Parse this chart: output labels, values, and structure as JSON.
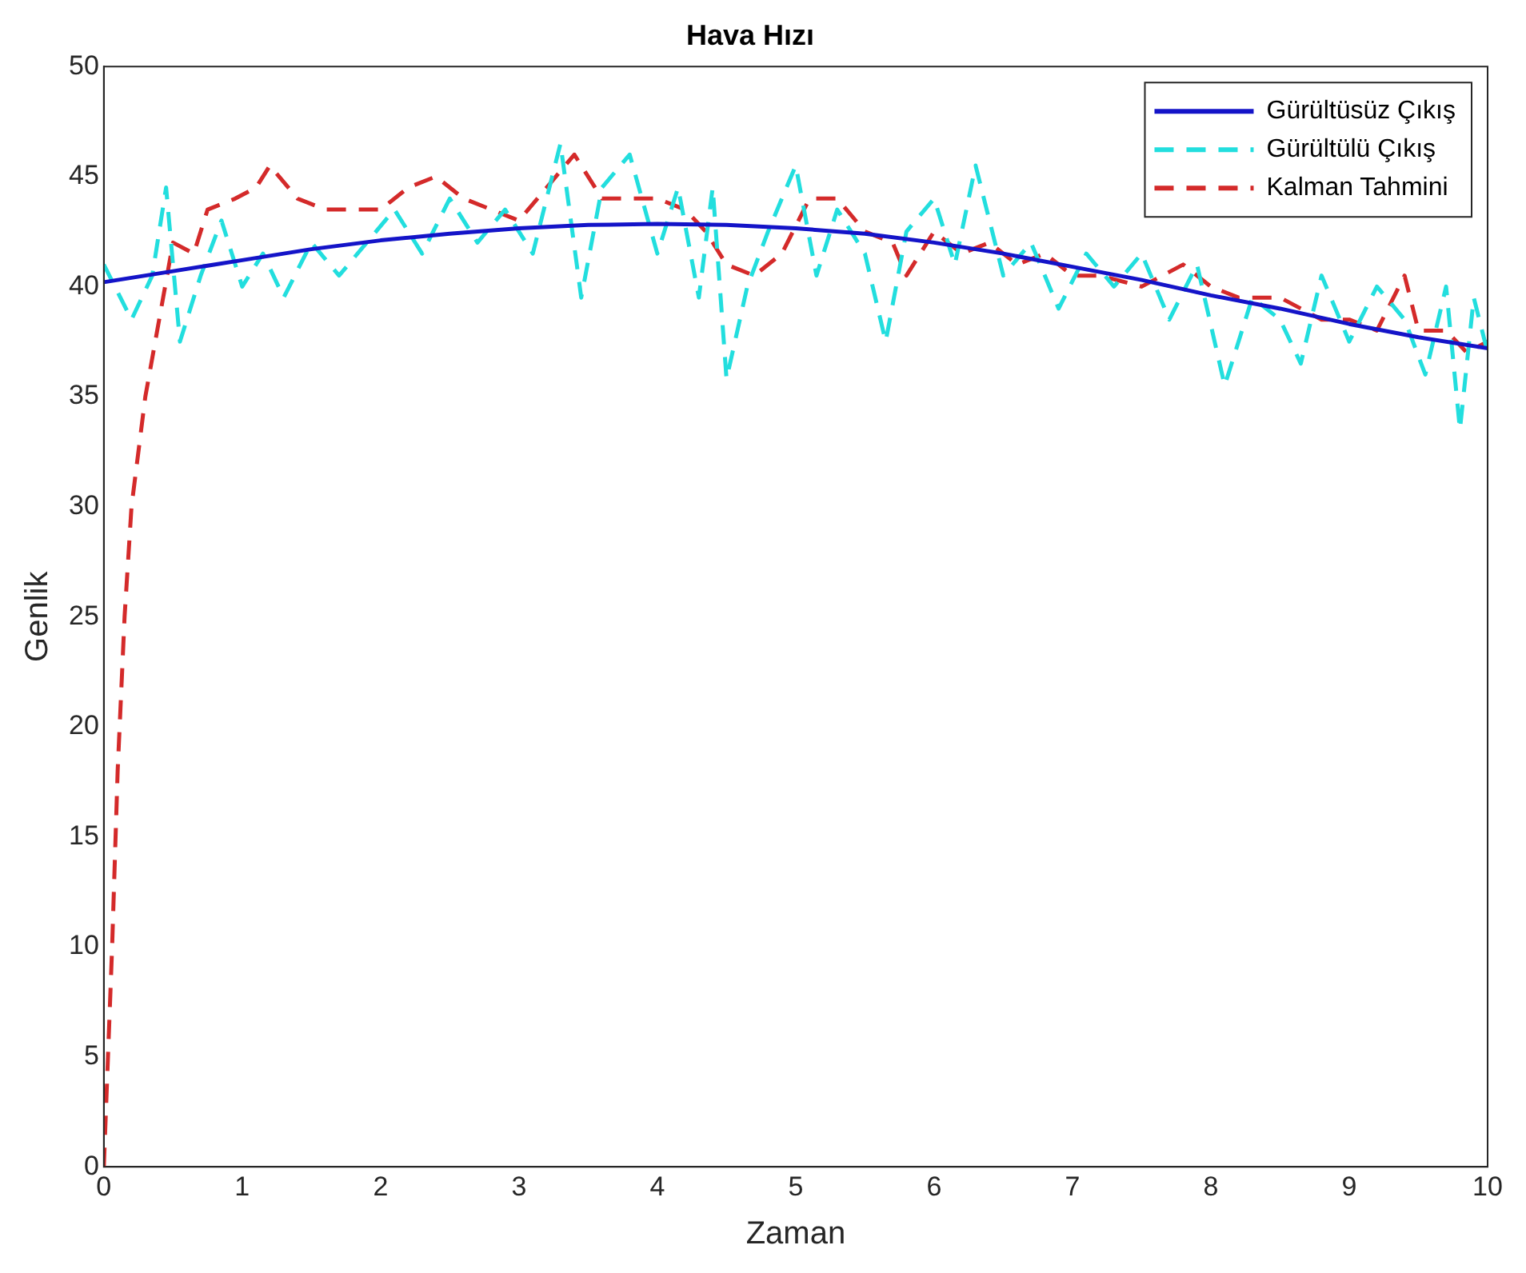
{
  "chart_data": {
    "type": "line",
    "title": "Hava Hızı",
    "xlabel": "Zaman",
    "ylabel": "Genlik",
    "xlim": [
      0,
      10
    ],
    "ylim": [
      0,
      50
    ],
    "xticks": [
      0,
      1,
      2,
      3,
      4,
      5,
      6,
      7,
      8,
      9,
      10
    ],
    "yticks": [
      0,
      5,
      10,
      15,
      20,
      25,
      30,
      35,
      40,
      45,
      50
    ],
    "grid": false,
    "legend": "top right",
    "marker": "none",
    "series": [
      {
        "name": "Gürültüsüz Çıkış",
        "color": "#1414c8",
        "line_style": "solid",
        "x": [
          0,
          0.5,
          1,
          1.5,
          2,
          2.5,
          3,
          3.5,
          4,
          4.5,
          5,
          5.5,
          6,
          6.5,
          7,
          7.5,
          8,
          8.5,
          9,
          9.5,
          10
        ],
        "values": [
          40.2,
          40.7,
          41.2,
          41.7,
          42.1,
          42.4,
          42.65,
          42.8,
          42.85,
          42.8,
          42.65,
          42.4,
          42,
          41.5,
          40.9,
          40.3,
          39.6,
          39,
          38.3,
          37.7,
          37.2
        ]
      },
      {
        "name": "Gürültülü Çıkış",
        "color": "#22dede",
        "line_style": "dashed",
        "x": [
          0,
          0.2,
          0.35,
          0.45,
          0.55,
          0.7,
          0.85,
          1,
          1.15,
          1.3,
          1.5,
          1.7,
          1.9,
          2.1,
          2.3,
          2.5,
          2.7,
          2.9,
          3.1,
          3.3,
          3.45,
          3.6,
          3.8,
          4,
          4.15,
          4.3,
          4.4,
          4.5,
          4.65,
          4.8,
          5,
          5.15,
          5.3,
          5.5,
          5.65,
          5.8,
          6,
          6.15,
          6.3,
          6.5,
          6.7,
          6.9,
          7.1,
          7.3,
          7.5,
          7.7,
          7.9,
          8.1,
          8.3,
          8.5,
          8.65,
          8.8,
          9,
          9.2,
          9.4,
          9.55,
          9.7,
          9.8,
          9.9,
          10
        ],
        "values": [
          41,
          38.5,
          40.5,
          44.5,
          37.5,
          40.5,
          43,
          40,
          41.5,
          39.5,
          42,
          40.5,
          42,
          43.5,
          41.5,
          44,
          42,
          43.5,
          41.5,
          46.5,
          39.5,
          44.5,
          46,
          41.5,
          44.5,
          39.5,
          44.5,
          35.8,
          40,
          42.5,
          45.5,
          40.5,
          43.5,
          41.5,
          37.5,
          42.5,
          44,
          41,
          45.5,
          40.5,
          42,
          39,
          41.5,
          40,
          41.5,
          38.5,
          41,
          35.5,
          39.5,
          38.5,
          36.5,
          40.5,
          37.5,
          40,
          38.5,
          36,
          40,
          33.5,
          39.5,
          37
        ]
      },
      {
        "name": "Kalman Tahmini",
        "color": "#d42a2a",
        "line_style": "dashed",
        "x": [
          0,
          0.03,
          0.06,
          0.1,
          0.15,
          0.2,
          0.3,
          0.4,
          0.5,
          0.65,
          0.75,
          0.95,
          1.1,
          1.2,
          1.4,
          1.6,
          1.8,
          2,
          2.2,
          2.4,
          2.6,
          2.8,
          3,
          3.2,
          3.4,
          3.6,
          3.8,
          4,
          4.2,
          4.35,
          4.5,
          4.7,
          4.9,
          5.1,
          5.3,
          5.5,
          5.7,
          5.8,
          6,
          6.2,
          6.4,
          6.6,
          6.8,
          7,
          7.2,
          7.5,
          7.8,
          8,
          8.2,
          8.5,
          8.8,
          9,
          9.2,
          9.4,
          9.5,
          9.7,
          9.85,
          10
        ],
        "values": [
          0,
          5,
          10,
          18,
          25,
          30,
          35,
          38.5,
          42,
          41.5,
          43.5,
          44,
          44.5,
          45.5,
          44,
          43.5,
          43.5,
          43.5,
          44.5,
          45,
          44,
          43.5,
          43,
          44.5,
          46,
          44,
          44,
          44,
          43.5,
          42.5,
          41,
          40.5,
          41.5,
          44,
          44,
          42.5,
          42,
          40.5,
          42.5,
          41.5,
          42,
          41,
          41.5,
          40.5,
          40.5,
          40,
          41,
          40,
          39.5,
          39.5,
          38.5,
          38.5,
          38,
          40.5,
          38,
          38,
          37,
          37.5
        ]
      }
    ]
  }
}
